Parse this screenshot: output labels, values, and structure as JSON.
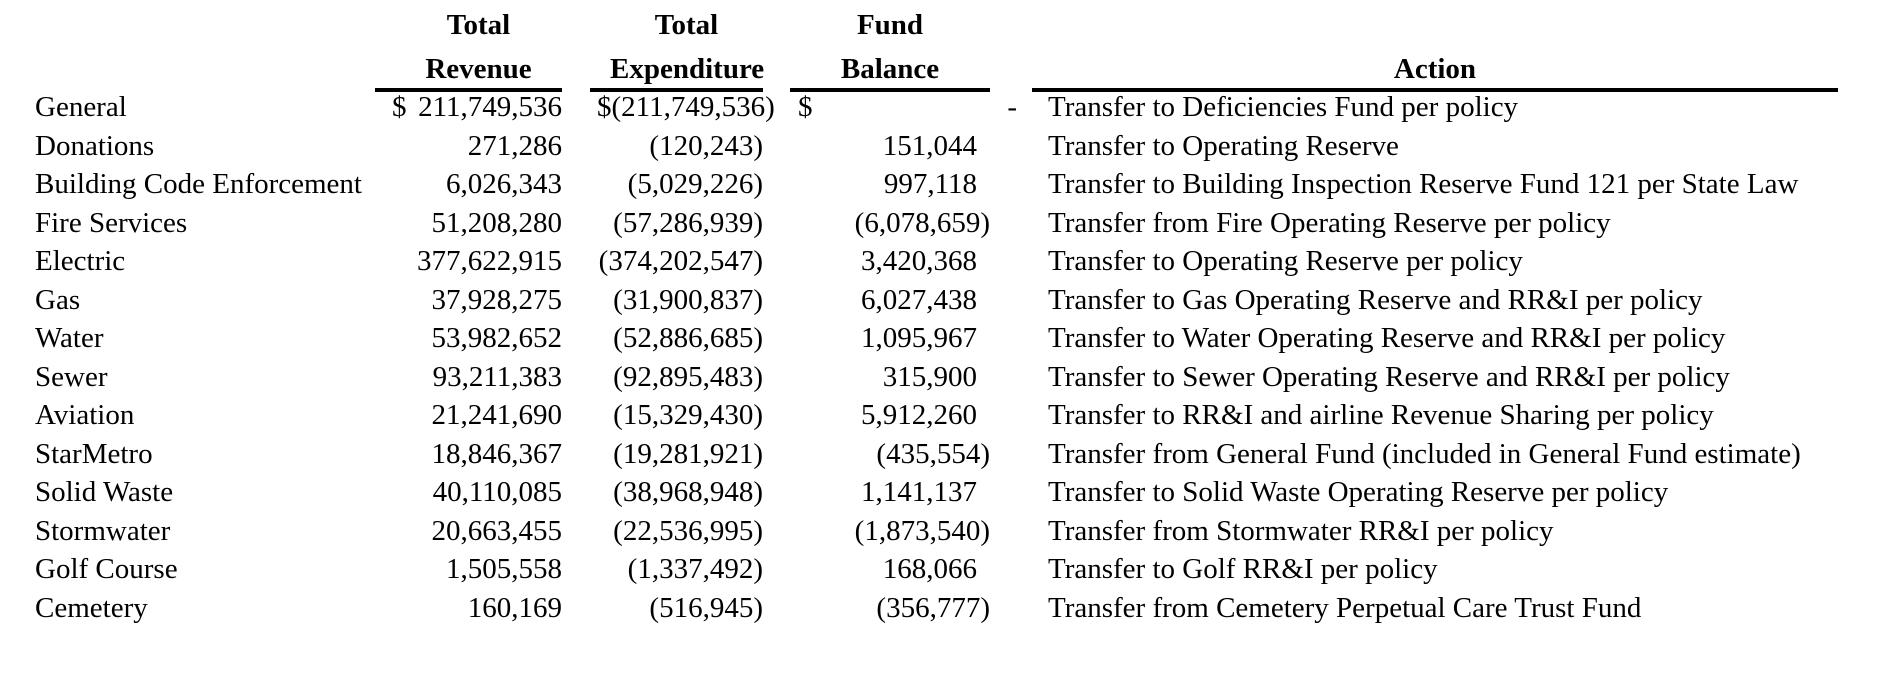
{
  "colors": {
    "text": "#000000",
    "background": "#ffffff",
    "rule": "#000000"
  },
  "currency_symbol": "$",
  "header": {
    "revenue_line1": "Total",
    "revenue_line2": "Revenue",
    "expenditure_line1": "Total",
    "expenditure_line2": "Expenditure",
    "balance_line1": "Fund",
    "balance_line2": "Balance",
    "action": "Action"
  },
  "rows": [
    {
      "fund": "General",
      "revenue": "211,749,536",
      "expenditure": "(211,749,536)",
      "balance": "-",
      "action": "Transfer to Deficiencies Fund per policy"
    },
    {
      "fund": "Donations",
      "revenue": "271,286",
      "expenditure": "(120,243)",
      "balance": "151,044",
      "action": "Transfer to Operating Reserve"
    },
    {
      "fund": "Building Code Enforcement",
      "revenue": "6,026,343",
      "expenditure": "(5,029,226)",
      "balance": "997,118",
      "action": "Transfer to Building Inspection Reserve Fund 121 per State Law"
    },
    {
      "fund": "Fire Services",
      "revenue": "51,208,280",
      "expenditure": "(57,286,939)",
      "balance": "(6,078,659)",
      "action": "Transfer from Fire Operating Reserve per policy"
    },
    {
      "fund": "Electric",
      "revenue": "377,622,915",
      "expenditure": "(374,202,547)",
      "balance": "3,420,368",
      "action": "Transfer to Operating Reserve per policy"
    },
    {
      "fund": "Gas",
      "revenue": "37,928,275",
      "expenditure": "(31,900,837)",
      "balance": "6,027,438",
      "action": "Transfer to Gas Operating Reserve and RR&I per policy"
    },
    {
      "fund": "Water",
      "revenue": "53,982,652",
      "expenditure": "(52,886,685)",
      "balance": "1,095,967",
      "action": "Transfer to Water Operating Reserve and RR&I per policy"
    },
    {
      "fund": "Sewer",
      "revenue": "93,211,383",
      "expenditure": "(92,895,483)",
      "balance": "315,900",
      "action": "Transfer to Sewer Operating Reserve and RR&I per policy"
    },
    {
      "fund": "Aviation",
      "revenue": "21,241,690",
      "expenditure": "(15,329,430)",
      "balance": "5,912,260",
      "action": "Transfer to RR&I and airline Revenue Sharing per policy"
    },
    {
      "fund": "StarMetro",
      "revenue": "18,846,367",
      "expenditure": "(19,281,921)",
      "balance": "(435,554)",
      "action": "Transfer from General Fund (included in General Fund estimate)"
    },
    {
      "fund": "Solid Waste",
      "revenue": "40,110,085",
      "expenditure": "(38,968,948)",
      "balance": "1,141,137",
      "action": "Transfer to Solid Waste Operating Reserve per policy"
    },
    {
      "fund": "Stormwater",
      "revenue": "20,663,455",
      "expenditure": "(22,536,995)",
      "balance": "(1,873,540)",
      "action": "Transfer from Stormwater RR&I per policy"
    },
    {
      "fund": "Golf Course",
      "revenue": "1,505,558",
      "expenditure": "(1,337,492)",
      "balance": "168,066",
      "action": "Transfer to Golf RR&I per policy"
    },
    {
      "fund": "Cemetery",
      "revenue": "160,169",
      "expenditure": "(516,945)",
      "balance": "(356,777)",
      "action": "Transfer from Cemetery Perpetual Care Trust Fund"
    }
  ]
}
